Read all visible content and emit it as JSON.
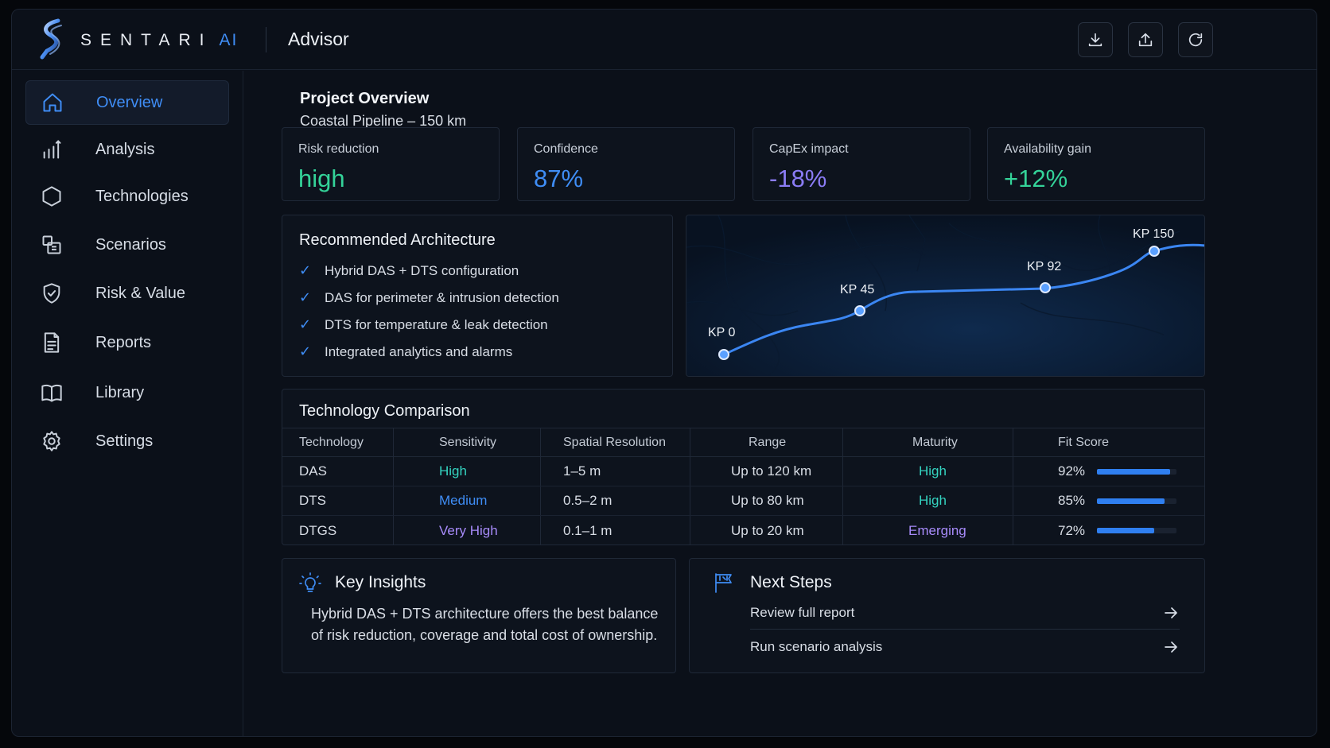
{
  "header": {
    "brand": "SENTARI",
    "brand_suffix": "AI",
    "app_title": "Advisor",
    "buttons": [
      "download-icon",
      "upload-icon",
      "refresh-icon"
    ]
  },
  "sidebar": {
    "items": [
      {
        "label": "Overview",
        "icon": "home-icon",
        "active": true
      },
      {
        "label": "Analysis",
        "icon": "bar-chart-icon",
        "active": false
      },
      {
        "label": "Technologies",
        "icon": "hexagon-icon",
        "active": false
      },
      {
        "label": "Scenarios",
        "icon": "scenarios-icon",
        "active": false
      },
      {
        "label": "Risk & Value",
        "icon": "shield-check-icon",
        "active": false
      },
      {
        "label": "Reports",
        "icon": "document-icon",
        "active": false
      },
      {
        "label": "Library",
        "icon": "book-icon",
        "active": false
      },
      {
        "label": "Settings",
        "icon": "gear-icon",
        "active": false
      }
    ]
  },
  "project": {
    "title": "Project Overview",
    "subtitle": "Coastal Pipeline – 150 km"
  },
  "kpis": [
    {
      "label": "Risk reduction",
      "value": "high",
      "color": "#34d399"
    },
    {
      "label": "Confidence",
      "value": "87%",
      "color": "#3f8df5"
    },
    {
      "label": "CapEx impact",
      "value": "-18%",
      "color": "#8b7cf6"
    },
    {
      "label": "Availability gain",
      "value": "+12%",
      "color": "#34d399"
    }
  ],
  "architecture": {
    "title": "Recommended Architecture",
    "items": [
      "Hybrid DAS + DTS configuration",
      "DAS for perimeter & intrusion detection",
      "DTS for temperature & leak detection",
      "Integrated analytics and alarms"
    ]
  },
  "map": {
    "markers": [
      "KP 0",
      "KP 45",
      "KP 92",
      "KP 150"
    ]
  },
  "comparison": {
    "title": "Technology Comparison",
    "headers": [
      "Technology",
      "Sensitivity",
      "Spatial Resolution",
      "Range",
      "Maturity",
      "Fit Score"
    ],
    "rows": [
      {
        "technology": "DAS",
        "sensitivity": "High",
        "sensitivity_color": "#34d3c0",
        "resolution": "1–5 m",
        "range": "Up to 120 km",
        "maturity": "High",
        "maturity_color": "#34d3c0",
        "fit": "92%",
        "fit_value": 0.92
      },
      {
        "technology": "DTS",
        "sensitivity": "Medium",
        "sensitivity_color": "#3f8df5",
        "resolution": "0.5–2 m",
        "range": "Up to 80 km",
        "maturity": "High",
        "maturity_color": "#34d3c0",
        "fit": "85%",
        "fit_value": 0.85
      },
      {
        "technology": "DTGS",
        "sensitivity": "Very High",
        "sensitivity_color": "#a78bfa",
        "resolution": "0.1–1 m",
        "range": "Up to 20 km",
        "maturity": "Emerging",
        "maturity_color": "#a78bfa",
        "fit": "72%",
        "fit_value": 0.72
      }
    ]
  },
  "insights": {
    "title": "Key Insights",
    "text": "Hybrid DAS + DTS architecture offers the best balance of risk reduction, coverage and total cost of ownership."
  },
  "next_steps": {
    "title": "Next Steps",
    "items": [
      "Review full report",
      "Run scenario analysis"
    ]
  }
}
